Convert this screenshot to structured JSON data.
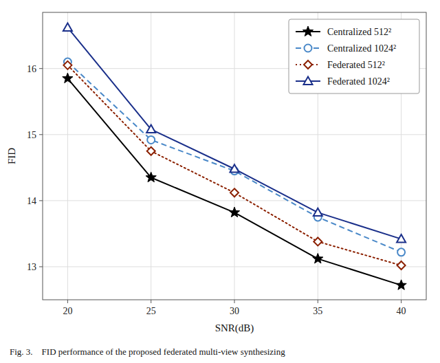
{
  "chart_data": {
    "type": "line",
    "x": [
      20,
      25,
      30,
      35,
      40
    ],
    "xlabel": "SNR(dB)",
    "ylabel": "FID",
    "xlim": [
      18.5,
      41.5
    ],
    "ylim": [
      12.5,
      16.85
    ],
    "xticks": [
      20,
      25,
      30,
      35,
      40
    ],
    "yticks": [
      13,
      14,
      15,
      16
    ],
    "grid": true,
    "legend": "upper right",
    "annotations": [
      "Fig. 3.    FID performance of the proposed federated multi-view synthesizing"
    ],
    "series": [
      {
        "name": "Centralized 512²",
        "color": "#000000",
        "marker": "star",
        "line_style": "solid",
        "values": [
          15.85,
          14.35,
          13.82,
          13.12,
          12.72
        ]
      },
      {
        "name": "Centralized 1024²",
        "color": "#4988C8",
        "marker": "circle",
        "line_style": "dashed",
        "values": [
          16.1,
          14.92,
          14.45,
          13.75,
          13.22
        ]
      },
      {
        "name": "Federated 512²",
        "color": "#8B2000",
        "marker": "diamond",
        "line_style": "dotted",
        "values": [
          16.05,
          14.75,
          14.12,
          13.38,
          13.02
        ]
      },
      {
        "name": "Federated 1024²",
        "color": "#1A2F8A",
        "marker": "triangle",
        "line_style": "solid",
        "values": [
          16.62,
          15.08,
          14.48,
          13.82,
          13.42
        ]
      }
    ]
  }
}
